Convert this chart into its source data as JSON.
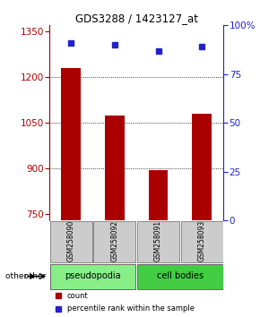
{
  "title": "GDS3288 / 1423127_at",
  "samples": [
    "GSM258090",
    "GSM258092",
    "GSM258091",
    "GSM258093"
  ],
  "bar_values": [
    1230,
    1075,
    895,
    1080
  ],
  "dot_values": [
    91,
    90,
    87,
    89
  ],
  "ylim_left": [
    730,
    1370
  ],
  "ylim_right": [
    0,
    100
  ],
  "yticks_left": [
    750,
    900,
    1050,
    1200,
    1350
  ],
  "yticks_right": [
    0,
    25,
    50,
    75,
    100
  ],
  "bar_color": "#aa0000",
  "dot_color": "#2222cc",
  "grid_color": "#000000",
  "bg_color": "#ffffff",
  "pseudopodia_color": "#88ee88",
  "cell_bodies_color": "#44cc44",
  "legend_items": [
    "count",
    "percentile rank within the sample"
  ],
  "legend_colors": [
    "#aa0000",
    "#2222cc"
  ],
  "bar_width": 0.45
}
